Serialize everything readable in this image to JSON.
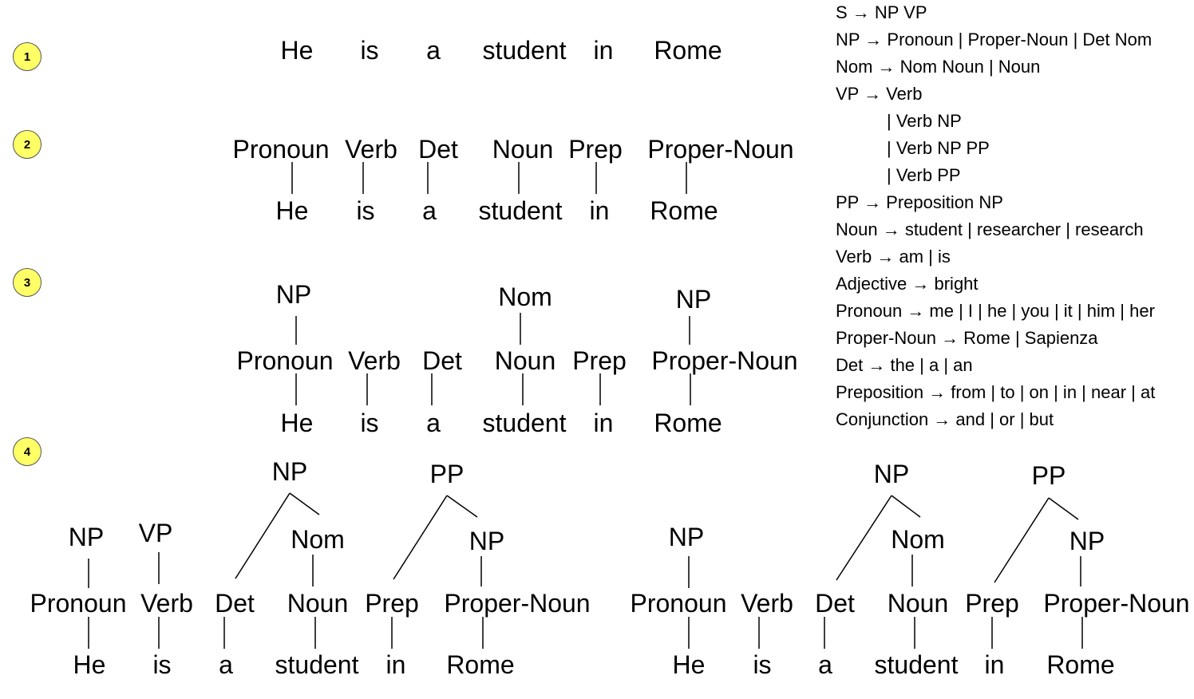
{
  "steps": [
    "1",
    "2",
    "3",
    "4"
  ],
  "words": [
    "He",
    "is",
    "a",
    "student",
    "in",
    "Rome"
  ],
  "pos": [
    "Pronoun",
    "Verb",
    "Det",
    "Noun",
    "Prep",
    "Proper-Noun"
  ],
  "phrases": {
    "np": "NP",
    "nom": "Nom",
    "vp": "VP",
    "pp": "PP"
  },
  "grammar": [
    "S → NP VP",
    "NP → Pronoun | Proper-Noun | Det Nom",
    "Nom → Nom Noun | Noun",
    "VP → Verb",
    "| Verb NP",
    "| Verb NP PP",
    "| Verb PP",
    "PP → Preposition NP",
    "Noun → student | researcher | research",
    "Verb → am | is",
    "Adjective → bright",
    "Pronoun → me | I | he | you | it | him | her",
    "Proper-Noun → Rome | Sapienza",
    "Det → the | a | an",
    "Preposition → from | to | on | in | near | at",
    "Conjunction → and | or | but"
  ],
  "colors": {
    "badge": "#ffff66",
    "line": "#000000",
    "text": "#000000"
  }
}
